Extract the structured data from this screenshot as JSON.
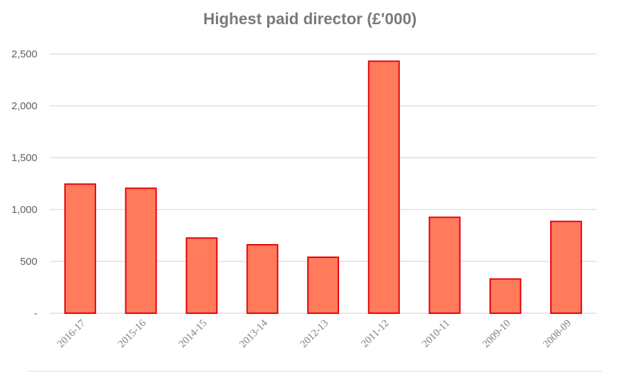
{
  "chart_data": {
    "type": "bar",
    "title": "Highest paid director (£'000)",
    "xlabel": "",
    "ylabel": "",
    "categories": [
      "2016-17",
      "2015-16",
      "2014-15",
      "2013-14",
      "2012-13",
      "2011-12",
      "2010-11",
      "2009-10",
      "2008-09"
    ],
    "values": [
      1245,
      1205,
      725,
      660,
      540,
      2430,
      925,
      330,
      885
    ],
    "ylim": [
      0,
      2500
    ],
    "yticks": [
      0,
      500,
      1000,
      1500,
      2000,
      2500
    ],
    "ytick_labels": [
      "-",
      "500",
      "1,000",
      "1,500",
      "2,000",
      "2,500"
    ],
    "grid": true,
    "legend": "none",
    "colors": {
      "bar_fill": "#ff7b5c",
      "bar_stroke": "#e8000b",
      "grid": "#d9d9d9",
      "title": "#7a7a7a"
    }
  }
}
